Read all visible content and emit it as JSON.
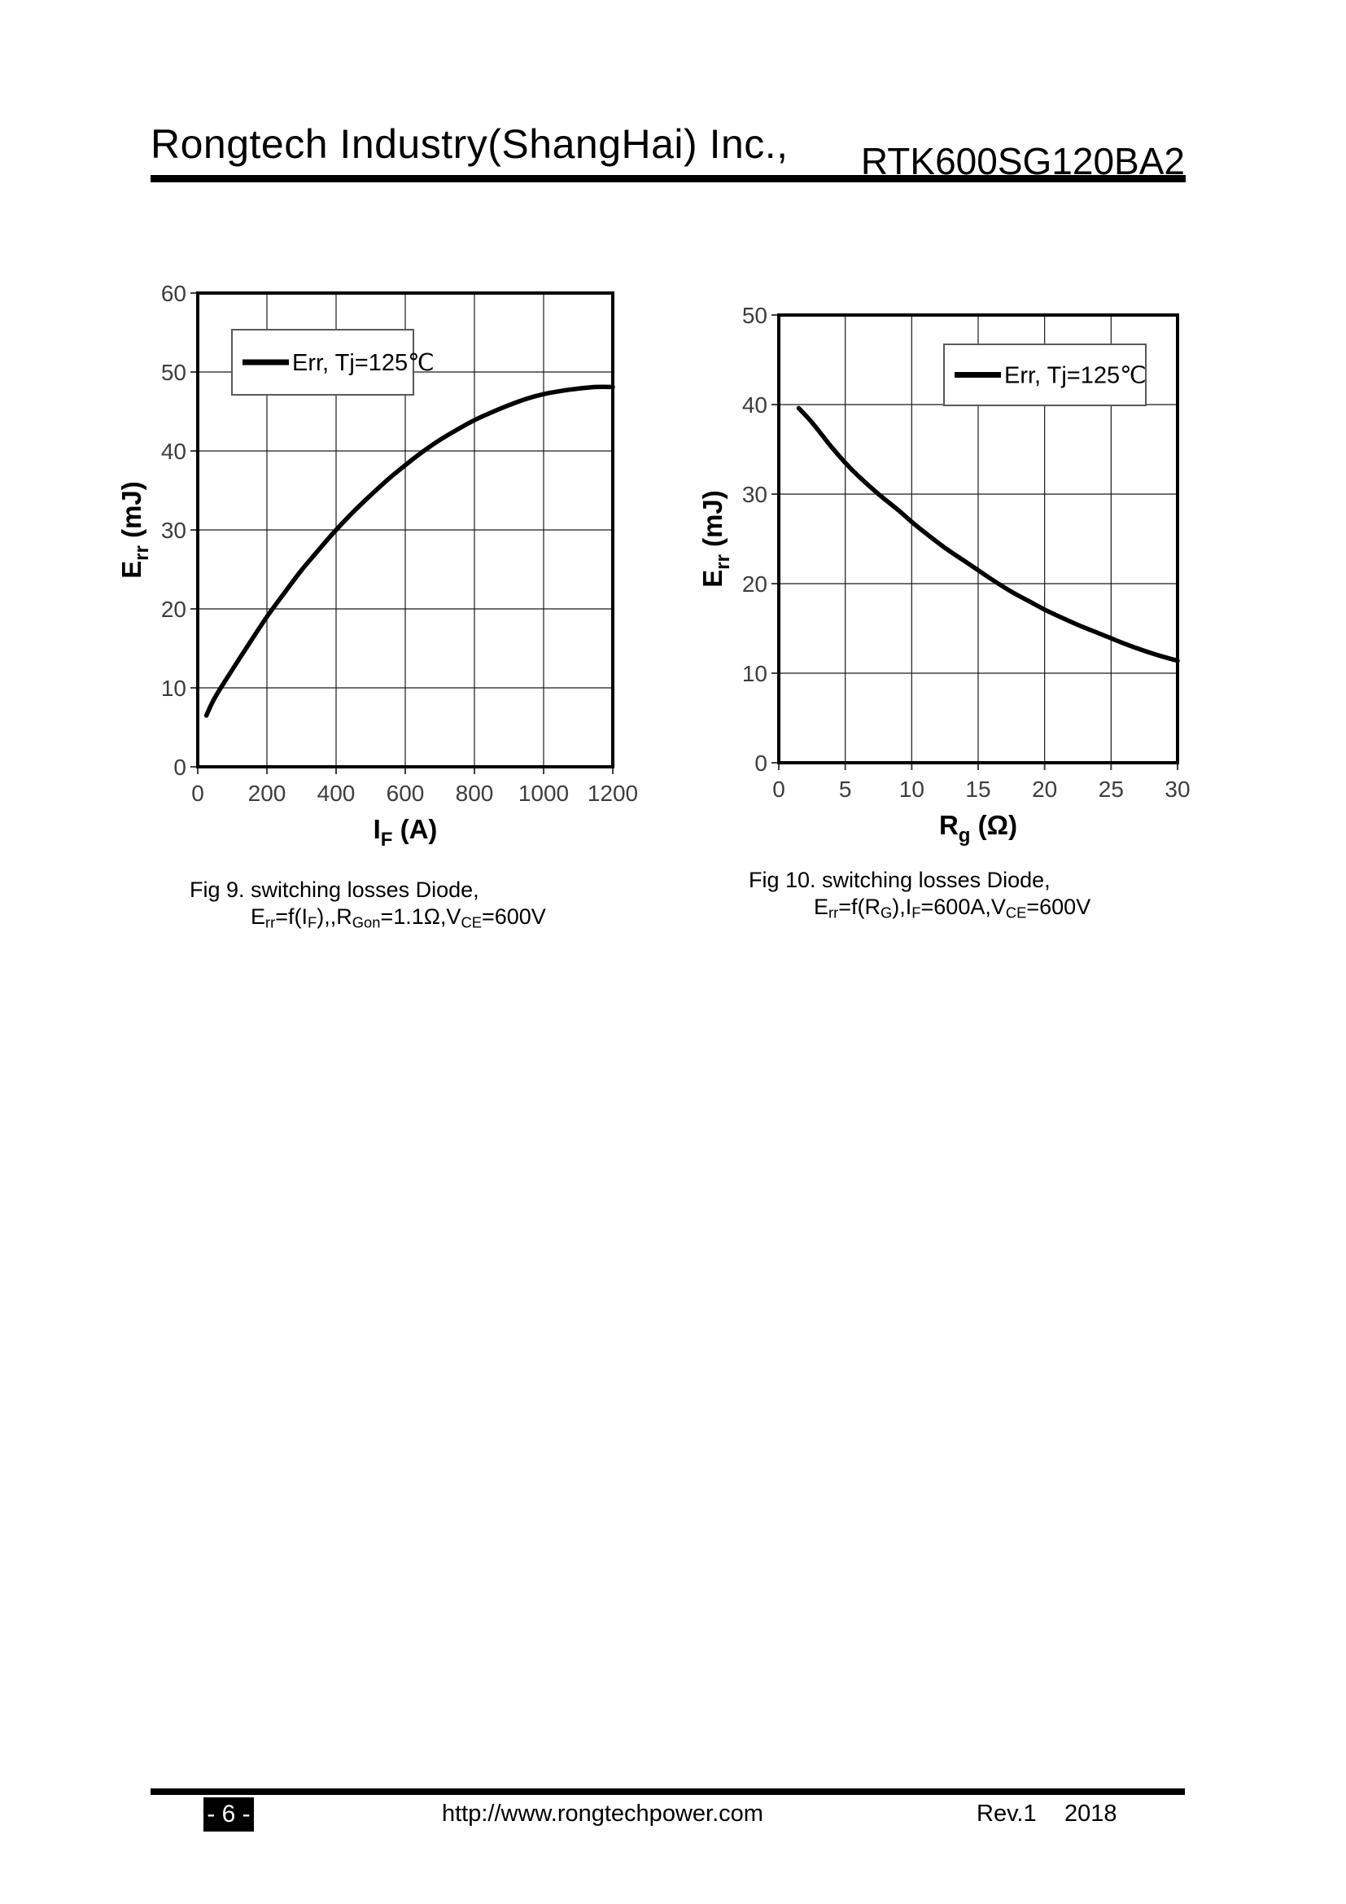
{
  "header": {
    "company": "Rongtech Industry(ShangHai) Inc.,",
    "part_number": "RTK600SG120BA2"
  },
  "chart_data": [
    {
      "type": "line",
      "title": "",
      "xlabel": "IF (A)",
      "ylabel": "Err (mJ)",
      "xlabel_parts": [
        {
          "t": "I"
        },
        {
          "t": "F",
          "sub": true
        },
        {
          "t": " (A)"
        }
      ],
      "ylabel_parts": [
        {
          "t": "E"
        },
        {
          "t": "rr",
          "sub": true
        },
        {
          "t": " (mJ)"
        }
      ],
      "xlim": [
        0,
        1200
      ],
      "ylim": [
        0,
        60
      ],
      "xticks": [
        0,
        200,
        400,
        600,
        800,
        1000,
        1200
      ],
      "yticks": [
        0,
        10,
        20,
        30,
        40,
        50,
        60
      ],
      "grid": true,
      "legend_position": "top-left",
      "legend_label": "Err, Tj=125℃",
      "series": [
        {
          "name": "Err, Tj=125℃",
          "points": [
            [
              25,
              6.5
            ],
            [
              50,
              8.8
            ],
            [
              100,
              12.3
            ],
            [
              150,
              15.7
            ],
            [
              200,
              19
            ],
            [
              250,
              22
            ],
            [
              300,
              24.9
            ],
            [
              350,
              27.5
            ],
            [
              400,
              30
            ],
            [
              450,
              32.3
            ],
            [
              500,
              34.4
            ],
            [
              550,
              36.4
            ],
            [
              600,
              38.2
            ],
            [
              650,
              39.9
            ],
            [
              700,
              41.4
            ],
            [
              750,
              42.7
            ],
            [
              800,
              43.9
            ],
            [
              850,
              44.9
            ],
            [
              900,
              45.8
            ],
            [
              950,
              46.6
            ],
            [
              1000,
              47.2
            ],
            [
              1050,
              47.6
            ],
            [
              1100,
              47.9
            ],
            [
              1150,
              48.1
            ],
            [
              1200,
              48.1
            ]
          ]
        }
      ]
    },
    {
      "type": "line",
      "title": "",
      "xlabel": "Rg (Ω)",
      "ylabel": "Err (mJ)",
      "xlabel_parts": [
        {
          "t": "R"
        },
        {
          "t": "g",
          "sub": true
        },
        {
          "t": " (Ω)"
        }
      ],
      "ylabel_parts": [
        {
          "t": "E"
        },
        {
          "t": "rr",
          "sub": true
        },
        {
          "t": " (mJ)"
        }
      ],
      "xlim": [
        0,
        30
      ],
      "ylim": [
        0,
        50
      ],
      "xticks": [
        0,
        5,
        10,
        15,
        20,
        25,
        30
      ],
      "yticks": [
        0,
        10,
        20,
        30,
        40,
        50
      ],
      "grid": true,
      "legend_position": "top-right",
      "legend_label": "Err, Tj=125℃",
      "series": [
        {
          "name": "Err, Tj=125℃",
          "points": [
            [
              1.5,
              39.6
            ],
            [
              2.5,
              38.0
            ],
            [
              4,
              35.2
            ],
            [
              5,
              33.5
            ],
            [
              6,
              32.0
            ],
            [
              7.5,
              30.0
            ],
            [
              9,
              28.2
            ],
            [
              10,
              26.9
            ],
            [
              11,
              25.7
            ],
            [
              12.5,
              24.0
            ],
            [
              14,
              22.5
            ],
            [
              15,
              21.5
            ],
            [
              16,
              20.5
            ],
            [
              17.5,
              19.1
            ],
            [
              19,
              17.9
            ],
            [
              20,
              17.1
            ],
            [
              21,
              16.4
            ],
            [
              22.5,
              15.4
            ],
            [
              24,
              14.5
            ],
            [
              25,
              13.9
            ],
            [
              26,
              13.3
            ],
            [
              27.5,
              12.5
            ],
            [
              29,
              11.8
            ],
            [
              30,
              11.4
            ]
          ]
        }
      ]
    }
  ],
  "captions": [
    {
      "line1": "Fig 9. switching losses Diode,",
      "line2_parts": [
        {
          "t": "E"
        },
        {
          "t": "rr",
          "sub": true
        },
        {
          "t": "=f(I"
        },
        {
          "t": "F",
          "sub": true
        },
        {
          "t": "),,R"
        },
        {
          "t": "Gon",
          "sub": true
        },
        {
          "t": "=1.1Ω,V"
        },
        {
          "t": "CE",
          "sub": true
        },
        {
          "t": "=600V"
        }
      ]
    },
    {
      "line1": "Fig 10. switching losses Diode,",
      "line2_parts": [
        {
          "t": "E"
        },
        {
          "t": "rr",
          "sub": true
        },
        {
          "t": "=f(R"
        },
        {
          "t": "G",
          "sub": true
        },
        {
          "t": "),I"
        },
        {
          "t": "F",
          "sub": true
        },
        {
          "t": "=600A,V"
        },
        {
          "t": "CE",
          "sub": true
        },
        {
          "t": "=600V"
        }
      ]
    }
  ],
  "footer": {
    "page_number": "- 6 -",
    "url": "http://www.rongtechpower.com",
    "revision": "Rev.1",
    "year": "2018"
  },
  "colors": {
    "ink": "#000000",
    "tick_label": "#3d3d3d",
    "gridline": "#1a1a1a",
    "legend_border": "#595959",
    "page_bg": "#ffffff"
  }
}
